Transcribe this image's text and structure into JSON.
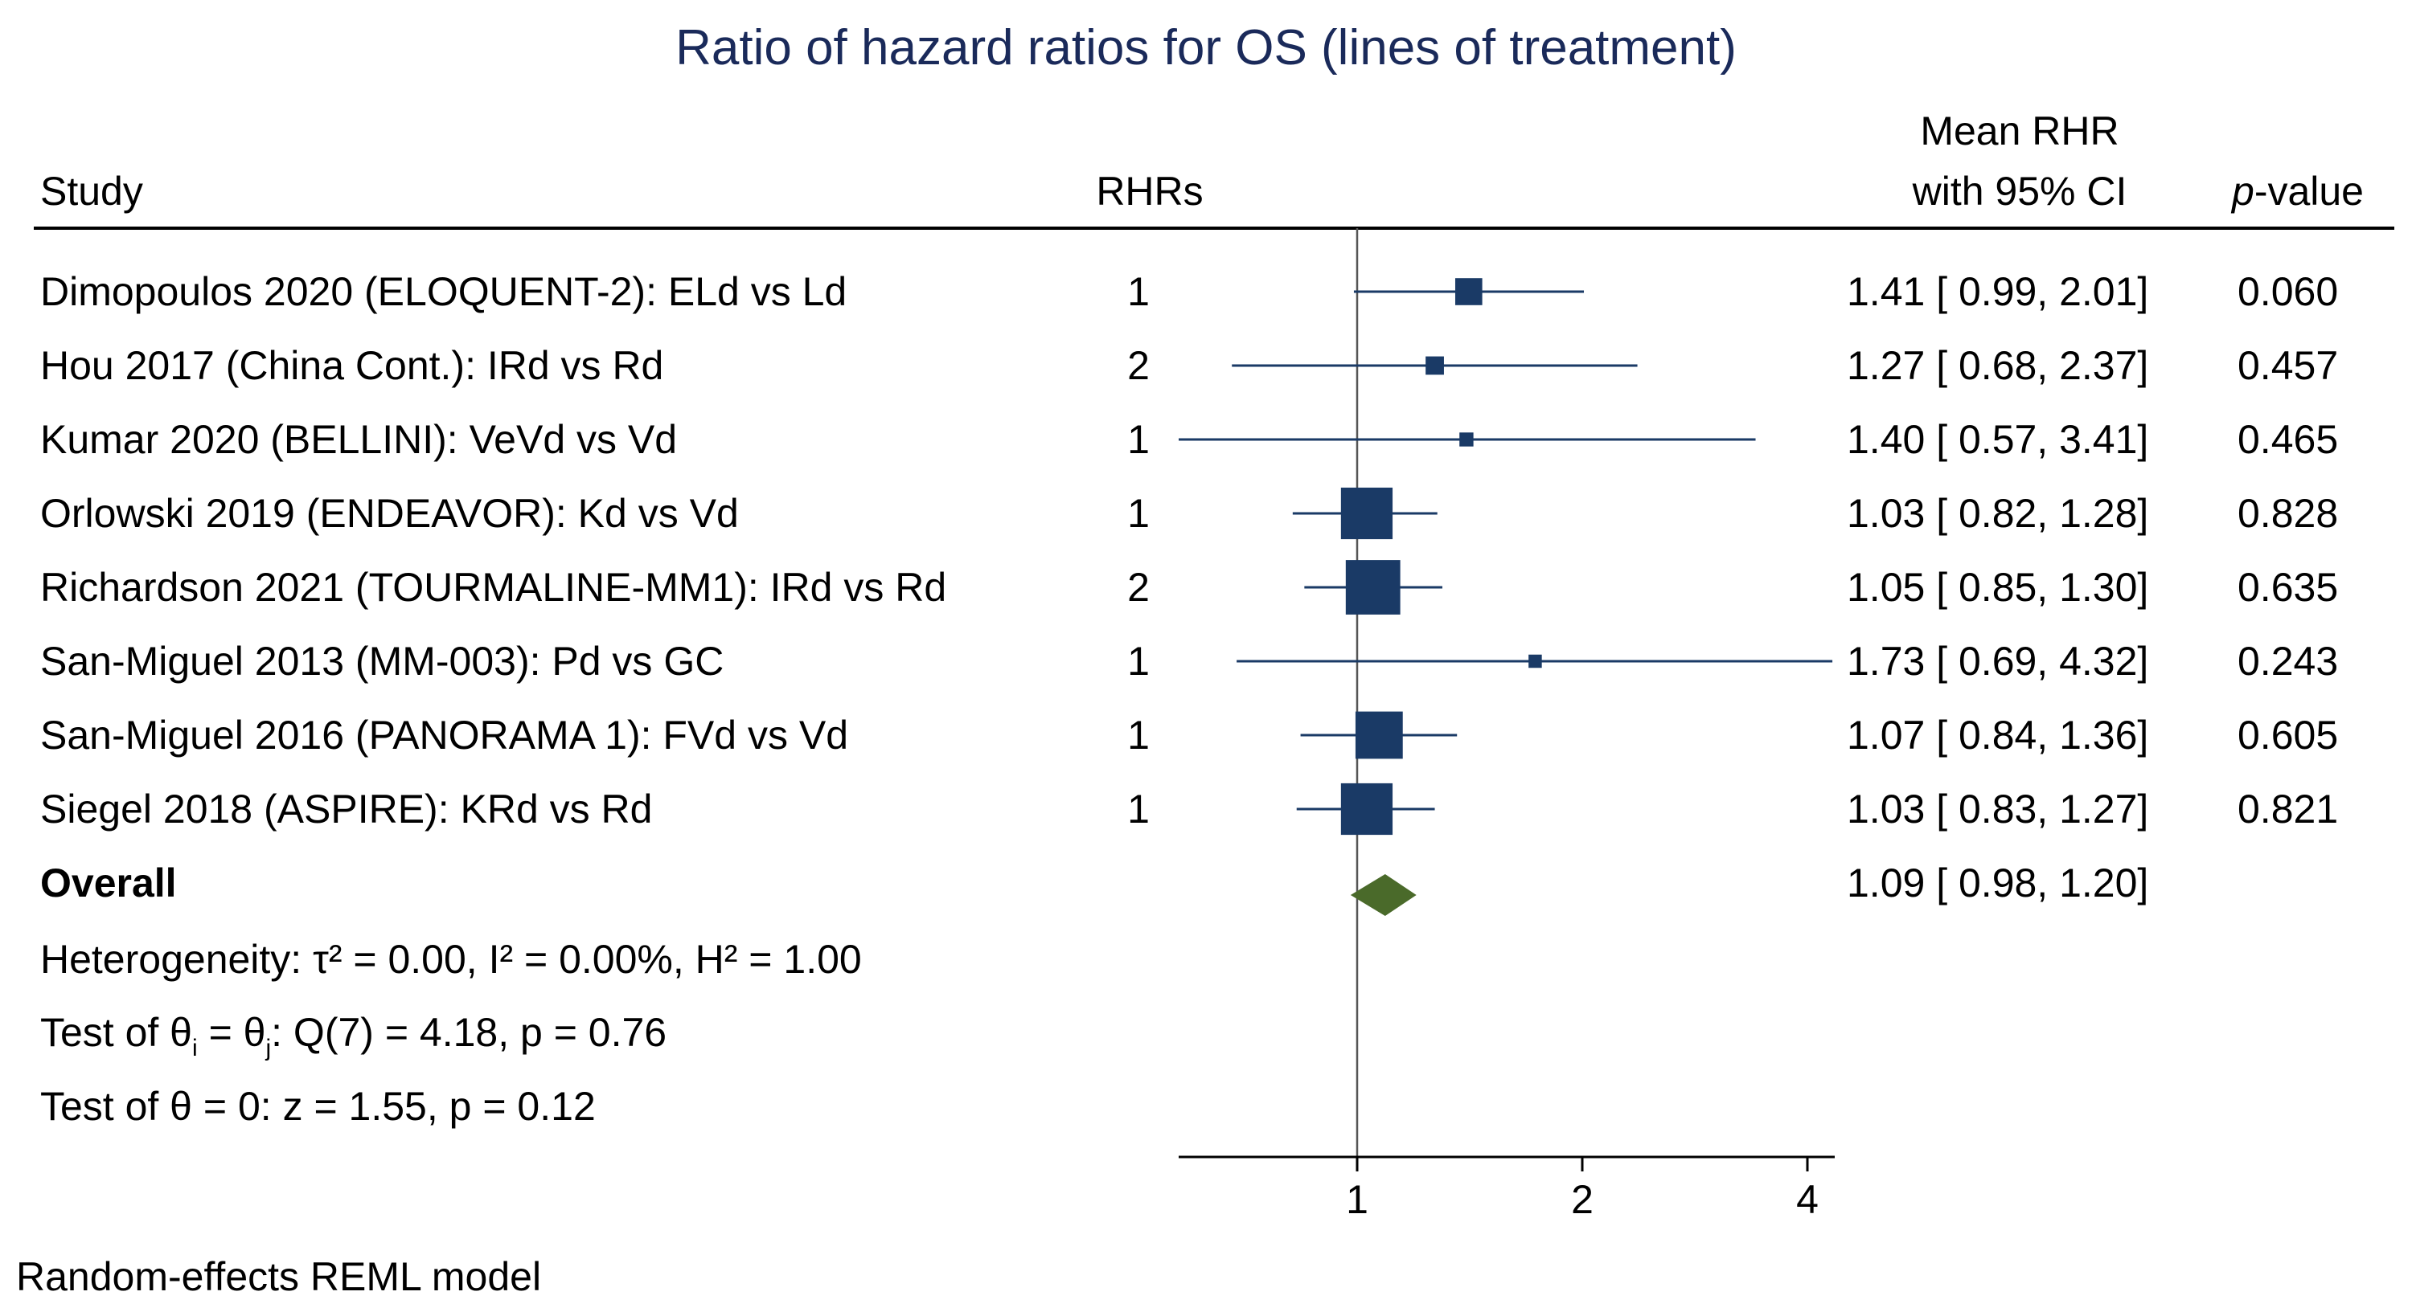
{
  "chart_data": {
    "type": "forest",
    "title": "Ratio of hazard ratios for OS (lines of treatment)",
    "columns": {
      "study": "Study",
      "n": "RHRs",
      "ci_line1": "Mean RHR",
      "ci_line2": "with 95% CI",
      "p_italic": "p",
      "p_rest": "-value"
    },
    "studies": [
      {
        "label": "Dimopoulos 2020 (ELOQUENT-2): ELd vs Ld",
        "n": "1",
        "est": 1.41,
        "lo": 0.99,
        "hi": 2.01,
        "ci_text": "1.41 [ 0.99,  2.01]",
        "p": "0.060",
        "weight": 0.24
      },
      {
        "label": "Hou 2017 (China Cont.): IRd vs Rd",
        "n": "2",
        "est": 1.27,
        "lo": 0.68,
        "hi": 2.37,
        "ci_text": "1.27 [ 0.68,  2.37]",
        "p": "0.457",
        "weight": 0.12
      },
      {
        "label": "Kumar 2020 (BELLINI): VeVd vs Vd",
        "n": "1",
        "est": 1.4,
        "lo": 0.57,
        "hi": 3.41,
        "ci_text": "1.40 [ 0.57,  3.41]",
        "p": "0.465",
        "weight": 0.06
      },
      {
        "label": "Orlowski 2019 (ENDEAVOR): Kd vs Vd",
        "n": "1",
        "est": 1.03,
        "lo": 0.82,
        "hi": 1.28,
        "ci_text": "1.03 [ 0.82,  1.28]",
        "p": "0.828",
        "weight": 0.58
      },
      {
        "label": "Richardson 2021 (TOURMALINE-MM1): IRd vs Rd",
        "n": "2",
        "est": 1.05,
        "lo": 0.85,
        "hi": 1.3,
        "ci_text": "1.05 [ 0.85,  1.30]",
        "p": "0.635",
        "weight": 0.62
      },
      {
        "label": "San-Miguel 2013 (MM-003): Pd vs GC",
        "n": "1",
        "est": 1.73,
        "lo": 0.69,
        "hi": 4.32,
        "ci_text": "1.73 [ 0.69,  4.32]",
        "p": "0.243",
        "weight": 0.05
      },
      {
        "label": "San-Miguel 2016 (PANORAMA 1): FVd vs Vd",
        "n": "1",
        "est": 1.07,
        "lo": 0.84,
        "hi": 1.36,
        "ci_text": "1.07 [ 0.84,  1.36]",
        "p": "0.605",
        "weight": 0.52
      },
      {
        "label": "Siegel 2018 (ASPIRE): KRd vs Rd",
        "n": "1",
        "est": 1.03,
        "lo": 0.83,
        "hi": 1.27,
        "ci_text": "1.03 [ 0.83,  1.27]",
        "p": "0.821",
        "weight": 0.58
      }
    ],
    "overall": {
      "label": "Overall",
      "est": 1.09,
      "lo": 0.98,
      "hi": 1.2,
      "ci_text": "1.09 [ 0.98,  1.20]"
    },
    "stats": {
      "heterogeneity": "Heterogeneity: τ² = 0.00, I² = 0.00%, H² = 1.00",
      "test_pre": "Test of θ",
      "sub_i": "i",
      "test_mid": " = θ",
      "sub_j": "j",
      "test_post": ": Q(7) = 4.18, p = 0.76",
      "test_zero": "Test of θ = 0: z = 1.55, p = 0.12"
    },
    "x_axis": {
      "scale": "log",
      "range": [
        0.45,
        4.3
      ],
      "ticks": [
        1,
        2,
        4
      ],
      "tick_labels": [
        "1",
        "2",
        "4"
      ],
      "reference_line": 1
    },
    "note": "Random-effects REML model",
    "colors": {
      "title": "#1a2a5a",
      "marker": "#1a3a66",
      "diamond": "#4a6a2a",
      "text": "#000000",
      "reference": "#555555"
    }
  }
}
